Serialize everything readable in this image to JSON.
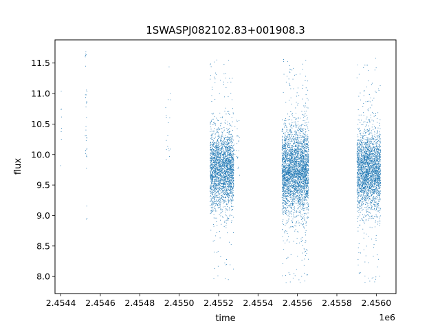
{
  "chart_data": {
    "type": "scatter",
    "title": "1SWASPJ082102.83+001908.3",
    "xlabel": "time",
    "ylabel": "flux",
    "x_offset_label": "1e6",
    "xlim": [
      2454370,
      2456100
    ],
    "ylim": [
      7.72,
      11.88
    ],
    "x_ticks": [
      2454400,
      2454600,
      2454800,
      2455000,
      2455200,
      2455400,
      2455600,
      2455800,
      2456000
    ],
    "x_tick_labels": [
      "2.4544",
      "2.4546",
      "2.4548",
      "2.4550",
      "2.4552",
      "2.4554",
      "2.4556",
      "2.4558",
      "2.4560"
    ],
    "y_ticks": [
      8.0,
      8.5,
      9.0,
      9.5,
      10.0,
      10.5,
      11.0,
      11.5
    ],
    "y_tick_labels": [
      "8.0",
      "8.5",
      "9.0",
      "9.5",
      "10.0",
      "10.5",
      "11.0",
      "11.5"
    ],
    "grid": false,
    "marker_color": "#1f77b4",
    "series": [
      {
        "observing_seasons": [
          {
            "x_range": [
              2454398,
              2454402
            ],
            "y_median": 10.65,
            "y_spread": 0.3,
            "points": 8,
            "sparse": true
          },
          {
            "x_range": [
              2454522,
              2454531
            ],
            "y_median": 10.6,
            "y_spread": 0.9,
            "points": 35,
            "sparse": true
          },
          {
            "x_range": [
              2454930,
              2454960
            ],
            "y_median": 10.4,
            "y_spread": 0.35,
            "points": 18,
            "sparse": true
          },
          {
            "x_range": [
              2455155,
              2455275
            ],
            "y_median": 9.75,
            "y_spread": 0.32,
            "points": 2600,
            "sparse": false
          },
          {
            "x_range": [
              2455275,
              2455305
            ],
            "y_median": 10.15,
            "y_spread": 0.2,
            "points": 25,
            "sparse": true
          },
          {
            "x_range": [
              2455520,
              2455655
            ],
            "y_median": 9.75,
            "y_spread": 0.35,
            "points": 3400,
            "sparse": false
          },
          {
            "x_range": [
              2455900,
              2456020
            ],
            "y_median": 9.75,
            "y_spread": 0.32,
            "points": 2700,
            "sparse": false
          }
        ]
      }
    ]
  }
}
